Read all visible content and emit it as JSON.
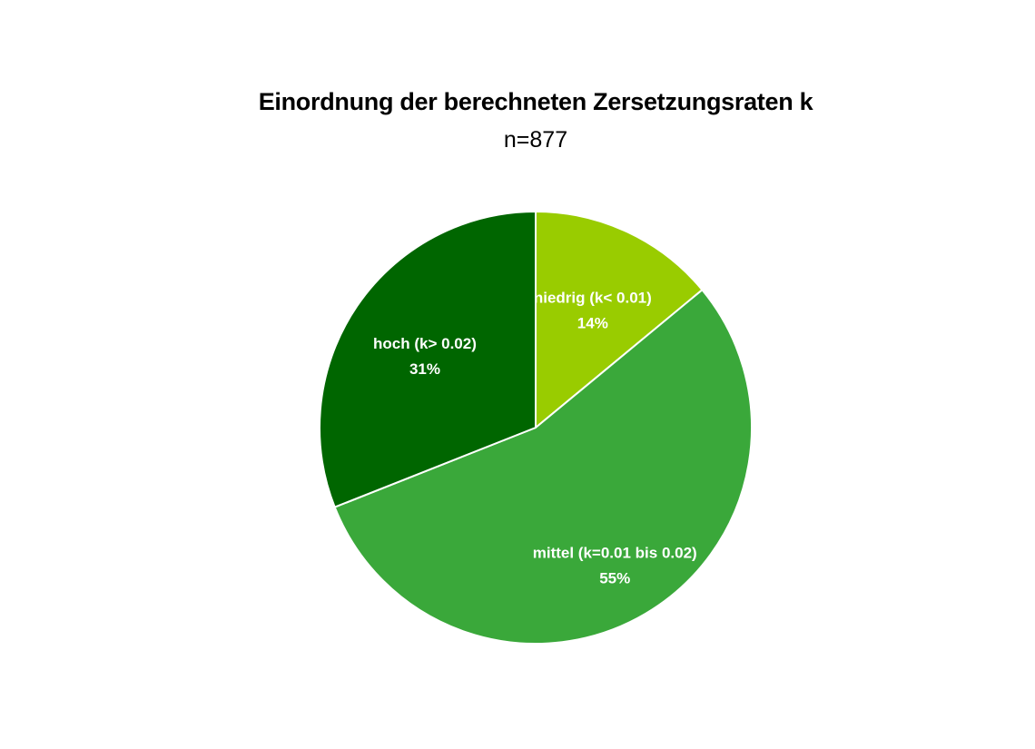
{
  "chart_data": {
    "type": "pie",
    "title": "Einordnung der berechneten Zersetzungsraten k",
    "subtitle": "n=877",
    "slices": [
      {
        "label": "niedrig (k< 0.01)",
        "value": 14,
        "value_label": "14%",
        "color": "#99cc00"
      },
      {
        "label": "mittel (k=0.01 bis 0.02)",
        "value": 55,
        "value_label": "55%",
        "color": "#3aa83a"
      },
      {
        "label": "hoch (k> 0.02)",
        "value": 31,
        "value_label": "31%",
        "color": "#006600"
      }
    ],
    "legend": "none"
  }
}
